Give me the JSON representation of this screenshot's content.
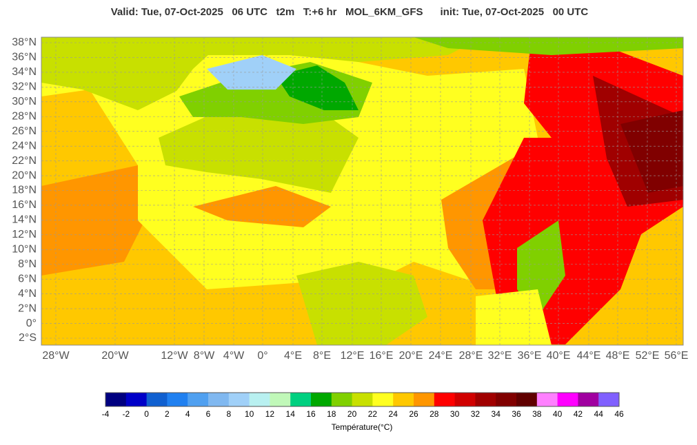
{
  "header": {
    "title": "Valid: Tue, 07-Oct-2025   06 UTC   t2m   T:+6 hr   MOL_6KM_GFS      init: Tue, 07-Oct-2025   00 UTC"
  },
  "map": {
    "lat_labels": [
      "38°N",
      "36°N",
      "34°N",
      "32°N",
      "30°N",
      "28°N",
      "26°N",
      "24°N",
      "22°N",
      "20°N",
      "18°N",
      "16°N",
      "14°N",
      "12°N",
      "10°N",
      "8°N",
      "6°N",
      "4°N",
      "2°N",
      "0°",
      "2°S"
    ],
    "lon_labels": [
      "28°W",
      "20°W",
      "12°W",
      "8°W",
      "4°W",
      "0°",
      "4°E",
      "8°E",
      "12°E",
      "16°E",
      "20°E",
      "24°E",
      "28°E",
      "32°E",
      "36°E",
      "40°E",
      "44°E",
      "48°E",
      "52°E",
      "56°E"
    ]
  },
  "colorbar": {
    "label": "Température(°C)",
    "ticks": [
      -4,
      -2,
      0,
      2,
      4,
      6,
      8,
      10,
      12,
      14,
      16,
      18,
      20,
      22,
      24,
      26,
      28,
      30,
      32,
      34,
      36,
      38,
      40,
      42,
      44,
      46
    ],
    "colors": [
      "#000080",
      "#0000c8",
      "#1060d0",
      "#2080f0",
      "#50a0f0",
      "#80b8f0",
      "#a0d0f8",
      "#b8f0f0",
      "#c0f8b8",
      "#00d080",
      "#00a800",
      "#80d000",
      "#c8e000",
      "#ffff20",
      "#ffc800",
      "#ff9600",
      "#ff0000",
      "#d00000",
      "#a00000",
      "#800000",
      "#600000",
      "#ff80ff",
      "#ff00ff",
      "#a000a0",
      "#8060ff"
    ]
  }
}
